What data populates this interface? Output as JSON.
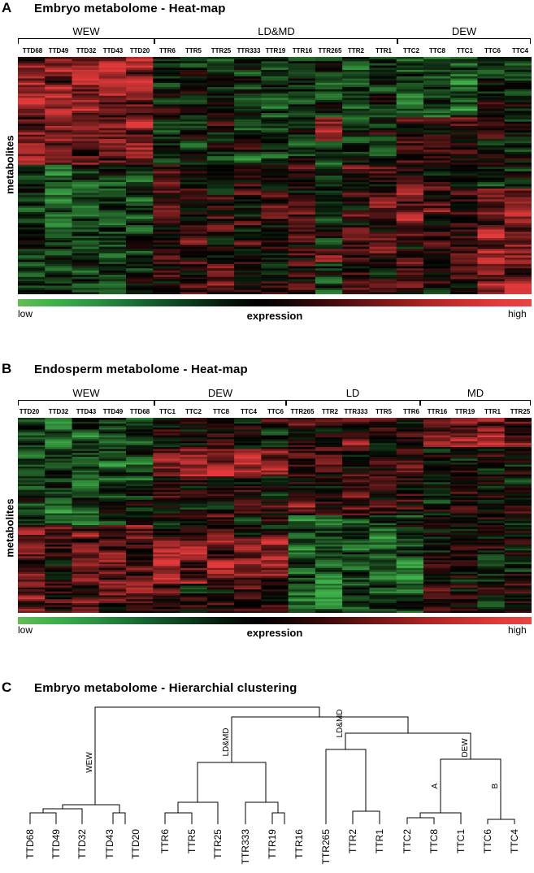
{
  "panels": {
    "a": {
      "letter": "A",
      "title": "Embryo metabolome - Heat-map",
      "groups": [
        "WEW",
        "LD&MD",
        "DEW"
      ],
      "samples": [
        "TTD68",
        "TTD49",
        "TTD32",
        "TTD43",
        "TTD20",
        "TTR6",
        "TTR5",
        "TTR25",
        "TTR333",
        "TTR19",
        "TTR16",
        "TTR265",
        "TTR2",
        "TTR1",
        "TTC2",
        "TTC8",
        "TTC1",
        "TTC6",
        "TTC4"
      ],
      "ylabel": "metabolites",
      "scale": {
        "low": "low",
        "mid": "expression",
        "high": "high"
      }
    },
    "b": {
      "letter": "B",
      "title": "Endosperm metabolome - Heat-map",
      "groups": [
        "WEW",
        "DEW",
        "LD",
        "MD"
      ],
      "samples": [
        "TTD20",
        "TTD32",
        "TTD43",
        "TTD49",
        "TTD68",
        "TTC1",
        "TTC2",
        "TTC8",
        "TTC4",
        "TTC6",
        "TTR265",
        "TTR2",
        "TTR333",
        "TTR5",
        "TTR6",
        "TTR16",
        "TTR19",
        "TTR1",
        "TTR25"
      ],
      "ylabel": "metabolites",
      "scale": {
        "low": "low",
        "mid": "expression",
        "high": "high"
      }
    },
    "c": {
      "letter": "C",
      "title": "Embryo metabolome - Hierarchial clustering",
      "leaves": [
        "TTD68",
        "TTD49",
        "TTD32",
        "TTD43",
        "TTD20",
        "TTR6",
        "TTR5",
        "TTR25",
        "TTR333",
        "TTR19",
        "TTR16",
        "TTR265",
        "TTR2",
        "TTR1",
        "TTC2",
        "TTC8",
        "TTC1",
        "TTC6",
        "TTC4"
      ],
      "branch_labels": [
        "WEW",
        "LD&MD",
        "LD&MD",
        "DEW",
        "A",
        "B"
      ]
    }
  },
  "colors": {
    "low": "#3fb24a",
    "mid": "#000000",
    "high": "#e23a3a",
    "line": "#000000"
  }
}
